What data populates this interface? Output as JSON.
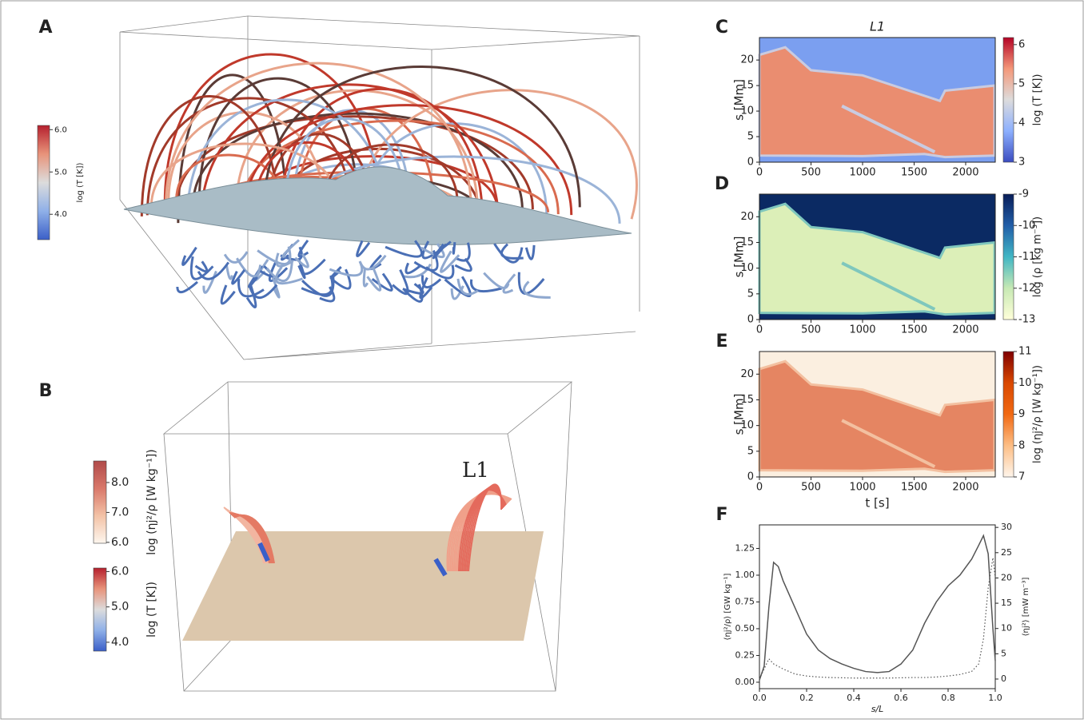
{
  "figure": {
    "A": {
      "label": "A",
      "colorbar": {
        "label": "log (T [K])",
        "lim": [
          3.4,
          6.1
        ],
        "colors": [
          "#3b5fc8",
          "#8fb0e8",
          "#dcdcdc",
          "#e8937a",
          "#b5202e"
        ],
        "ticks": [
          {
            "value": 6,
            "label": "6.0"
          },
          {
            "value": 5,
            "label": "5.0"
          },
          {
            "value": 4,
            "label": "4.0"
          }
        ]
      }
    },
    "B": {
      "label": "B",
      "annotation": "L1",
      "colorbars": [
        {
          "label": "log (ηj²/ρ [W kg⁻¹])",
          "lim": [
            5.97,
            8.72
          ],
          "colors": [
            "#fdf6ee",
            "#f3c2a6",
            "#d9786a",
            "#b04a4a"
          ],
          "ticks": [
            {
              "value": 8,
              "label": "8.0"
            },
            {
              "value": 7,
              "label": "7.0"
            },
            {
              "value": 6,
              "label": "6.0"
            }
          ]
        },
        {
          "label": "log (T [K])",
          "lim": [
            3.75,
            6.1
          ],
          "colors": [
            "#3b5fc8",
            "#8fb0e8",
            "#dcdcdc",
            "#e8937a",
            "#b5202e"
          ],
          "ticks": [
            {
              "value": 6,
              "label": "6.0"
            },
            {
              "value": 5,
              "label": "5.0"
            },
            {
              "value": 4,
              "label": "4.0"
            }
          ]
        }
      ]
    }
  },
  "chart_data": [
    {
      "type": "heatmap",
      "panel": "C",
      "title": "L1",
      "ylabel": "s [Mm]",
      "xlim": [
        0,
        2287
      ],
      "ylim": [
        0,
        24.4
      ],
      "xticks": [
        0,
        500,
        1000,
        1500,
        2000
      ],
      "yticks": [
        0,
        5,
        10,
        15,
        20
      ],
      "colorbar": {
        "label": "log (T [K])",
        "lim": [
          3,
          6.18
        ],
        "colors": [
          "#3b4cc0",
          "#8db0fe",
          "#dddcdc",
          "#f4987a",
          "#b40426"
        ],
        "ticks": [
          3,
          4,
          5,
          6
        ]
      }
    },
    {
      "type": "heatmap",
      "panel": "D",
      "ylabel": "s [Mm]",
      "xlim": [
        0,
        2287
      ],
      "ylim": [
        0,
        24.4
      ],
      "xticks": [
        0,
        500,
        1000,
        1500,
        2000
      ],
      "yticks": [
        0,
        5,
        10,
        15,
        20
      ],
      "colorbar": {
        "label": "log (ρ [kg m⁻³])",
        "lim": [
          -13,
          -9
        ],
        "colors": [
          "#ffffd9",
          "#c7e9b4",
          "#41b6c4",
          "#225ea8",
          "#081d58"
        ],
        "ticks": [
          -9,
          -10,
          -11,
          -12,
          -13
        ]
      }
    },
    {
      "type": "heatmap",
      "panel": "E",
      "ylabel": "s [Mm]",
      "xlabel": "t [s]",
      "xlim": [
        0,
        2287
      ],
      "ylim": [
        0,
        24.4
      ],
      "xticks": [
        0,
        500,
        1000,
        1500,
        2000
      ],
      "yticks": [
        0,
        5,
        10,
        15,
        20
      ],
      "colorbar": {
        "label": "log (ηj²/ρ [W kg⁻¹])",
        "lim": [
          7,
          11
        ],
        "colors": [
          "#fff5eb",
          "#fdbe85",
          "#f16913",
          "#d94801",
          "#7f0000"
        ],
        "ticks": [
          11,
          10,
          9,
          8,
          7
        ]
      }
    },
    {
      "type": "line",
      "panel": "F",
      "xlabel": "s/L",
      "ylabel": "⟨ηj²/ρ⟩ [GW kg⁻¹]",
      "y2label": "⟨ηj²⟩ [mW m⁻³]",
      "xlim": [
        0,
        1
      ],
      "ylim": [
        -0.06,
        1.47
      ],
      "y2lim": [
        -1.9,
        30.5
      ],
      "xticks": [
        {
          "value": 0,
          "label": "0.0"
        },
        {
          "value": 0.2,
          "label": "0.2"
        },
        {
          "value": 0.4,
          "label": "0.4"
        },
        {
          "value": 0.6,
          "label": "0.6"
        },
        {
          "value": 0.8,
          "label": "0.8"
        },
        {
          "value": 1,
          "label": "1.0"
        }
      ],
      "yticks": [
        {
          "value": 0,
          "label": "0.00"
        },
        {
          "value": 0.25,
          "label": "0.25"
        },
        {
          "value": 0.5,
          "label": "0.50"
        },
        {
          "value": 0.75,
          "label": "0.75"
        },
        {
          "value": 1,
          "label": "1.00"
        },
        {
          "value": 1.25,
          "label": "1.25"
        }
      ],
      "y2ticks": [
        0,
        5,
        10,
        15,
        20,
        25,
        30
      ],
      "x": [
        0,
        0.02,
        0.04,
        0.06,
        0.08,
        0.1,
        0.15,
        0.2,
        0.25,
        0.3,
        0.35,
        0.4,
        0.45,
        0.5,
        0.55,
        0.6,
        0.65,
        0.7,
        0.75,
        0.8,
        0.85,
        0.9,
        0.93,
        0.95,
        0.97,
        0.99,
        1
      ],
      "series": [
        {
          "color": "#555555",
          "style": "solid",
          "values": [
            0.02,
            0.15,
            0.7,
            1.12,
            1.08,
            0.95,
            0.7,
            0.45,
            0.3,
            0.22,
            0.17,
            0.13,
            0.1,
            0.09,
            0.1,
            0.17,
            0.3,
            0.55,
            0.75,
            0.9,
            1.0,
            1.15,
            1.28,
            1.37,
            1.2,
            0.5,
            0.2
          ]
        },
        {
          "color": "#555555",
          "style": "dotted",
          "axis": "y2",
          "values": [
            0,
            2,
            4,
            3,
            2.5,
            2,
            1,
            0.6,
            0.4,
            0.3,
            0.25,
            0.2,
            0.2,
            0.2,
            0.2,
            0.25,
            0.3,
            0.3,
            0.4,
            0.6,
            0.9,
            1.5,
            3,
            8,
            18,
            24,
            20
          ]
        }
      ]
    }
  ]
}
